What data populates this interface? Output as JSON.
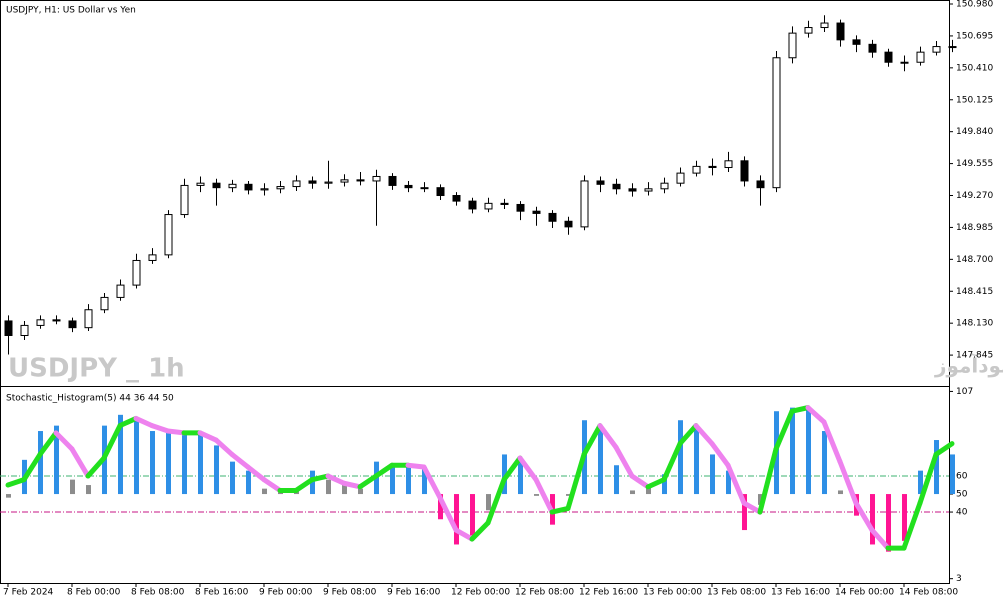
{
  "chart_data": [
    {
      "type": "candlestick",
      "title": "USDJPY, H1:  US Dollar vs Yen",
      "annotations": [
        "USDJPY _ 1h",
        "انتشار در سایت سودآموز"
      ],
      "up_color": "#ffffff",
      "down_color": "#000000",
      "line_color": "#000000",
      "ylim": [
        147.578,
        150.989
      ],
      "yticks": [
        {
          "value": 150.98,
          "label": "150.980"
        },
        {
          "value": 150.695,
          "label": "150.695"
        },
        {
          "value": 150.41,
          "label": "150.410"
        },
        {
          "value": 150.125,
          "label": "150.125"
        },
        {
          "value": 149.84,
          "label": "149.840"
        },
        {
          "value": 149.555,
          "label": "149.555"
        },
        {
          "value": 149.27,
          "label": "149.270"
        },
        {
          "value": 148.985,
          "label": "148.985"
        },
        {
          "value": 148.7,
          "label": "148.700"
        },
        {
          "value": 148.415,
          "label": "148.415"
        },
        {
          "value": 148.13,
          "label": "148.130"
        },
        {
          "value": 147.845,
          "label": "147.845"
        }
      ],
      "open": [
        148.15,
        148.02,
        148.11,
        148.16,
        148.15,
        148.09,
        148.25,
        148.36,
        148.47,
        148.69,
        148.74,
        149.1,
        149.36,
        149.38,
        149.34,
        149.37,
        149.32,
        149.33,
        149.35,
        149.4,
        149.38,
        149.39,
        149.41,
        149.4,
        149.44,
        149.36,
        149.34,
        149.34,
        149.27,
        149.22,
        149.15,
        149.2,
        149.19,
        149.13,
        149.11,
        149.04,
        148.99,
        149.4,
        149.37,
        149.33,
        149.31,
        149.33,
        149.38,
        149.47,
        149.53,
        149.52,
        149.58,
        149.4,
        149.34,
        150.5,
        150.72,
        150.77,
        150.81,
        150.66,
        150.62,
        150.55,
        150.46,
        150.46,
        150.55,
        150.6
      ],
      "high": [
        148.2,
        148.15,
        148.2,
        148.2,
        148.18,
        148.3,
        148.4,
        148.52,
        148.75,
        148.8,
        149.14,
        149.42,
        149.44,
        149.42,
        149.41,
        149.4,
        149.38,
        149.4,
        149.45,
        149.44,
        149.58,
        149.46,
        149.48,
        149.5,
        149.47,
        149.4,
        149.39,
        149.37,
        149.3,
        149.25,
        149.25,
        149.24,
        149.22,
        149.17,
        149.14,
        149.08,
        149.45,
        149.44,
        149.42,
        149.38,
        149.39,
        149.43,
        149.52,
        149.58,
        149.6,
        149.66,
        149.62,
        149.45,
        150.56,
        150.78,
        150.83,
        150.88,
        150.84,
        150.7,
        150.66,
        150.58,
        150.52,
        150.6,
        150.65,
        150.66
      ],
      "low": [
        147.85,
        147.98,
        148.08,
        148.12,
        148.05,
        148.06,
        148.22,
        148.33,
        148.44,
        148.66,
        148.71,
        149.07,
        149.3,
        149.18,
        149.3,
        149.28,
        149.27,
        149.29,
        149.31,
        149.33,
        149.33,
        149.35,
        149.36,
        149.0,
        149.32,
        149.3,
        149.3,
        149.23,
        149.18,
        149.11,
        149.12,
        149.15,
        149.05,
        149.0,
        148.98,
        148.92,
        148.96,
        149.3,
        149.28,
        149.26,
        149.27,
        149.29,
        149.35,
        149.44,
        149.45,
        149.48,
        149.35,
        149.18,
        149.3,
        150.45,
        150.68,
        150.73,
        150.6,
        150.55,
        150.5,
        150.42,
        150.38,
        150.43,
        150.52,
        150.55
      ],
      "close": [
        148.02,
        148.11,
        148.16,
        148.15,
        148.09,
        148.25,
        148.36,
        148.47,
        148.69,
        148.74,
        149.1,
        149.36,
        149.38,
        149.34,
        149.37,
        149.32,
        149.33,
        149.35,
        149.4,
        149.38,
        149.39,
        149.41,
        149.4,
        149.44,
        149.36,
        149.34,
        149.34,
        149.27,
        149.22,
        149.15,
        149.2,
        149.19,
        149.13,
        149.11,
        149.04,
        148.99,
        149.4,
        149.37,
        149.33,
        149.31,
        149.33,
        149.38,
        149.47,
        149.53,
        149.52,
        149.58,
        149.4,
        149.34,
        150.5,
        150.72,
        150.77,
        150.81,
        150.66,
        150.62,
        150.55,
        150.46,
        150.46,
        150.55,
        150.6,
        150.6
      ]
    },
    {
      "type": "histogram",
      "title": "Stochastic_Histogram(5) 44 36 44 50",
      "categories": [
        "7 Feb 2024",
        null,
        null,
        null,
        "8 Feb 00:00",
        null,
        null,
        null,
        "8 Feb 08:00",
        null,
        null,
        null,
        "8 Feb 16:00",
        null,
        null,
        null,
        "9 Feb 00:00",
        null,
        null,
        null,
        "9 Feb 08:00",
        null,
        null,
        null,
        "9 Feb 16:00",
        null,
        null,
        null,
        "12 Feb 00:00",
        null,
        null,
        null,
        "12 Feb 08:00",
        null,
        null,
        null,
        "12 Feb 16:00",
        null,
        null,
        null,
        "13 Feb 00:00",
        null,
        null,
        null,
        "13 Feb 08:00",
        null,
        null,
        null,
        "13 Feb 16:00",
        null,
        null,
        null,
        "14 Feb 00:00",
        null,
        null,
        null,
        "14 Feb 08:00",
        null,
        null,
        null
      ],
      "values": [
        48,
        69,
        85,
        88,
        58,
        55,
        88,
        94,
        91,
        85,
        84,
        84,
        84,
        77,
        68,
        63,
        53,
        51,
        53,
        63,
        58,
        55,
        53,
        68,
        66,
        65,
        65,
        36,
        22,
        27,
        41,
        72,
        69,
        49,
        33,
        49,
        91,
        88,
        66,
        52,
        55,
        61,
        91,
        88,
        72,
        63,
        30,
        44,
        96,
        98,
        97,
        85,
        52,
        38,
        22,
        18,
        24,
        63,
        80,
        72
      ],
      "signal": [
        55,
        58,
        72,
        84,
        75,
        60,
        70,
        88,
        92,
        88,
        85,
        84,
        84,
        80,
        72,
        65,
        58,
        52,
        52,
        58,
        60,
        56,
        54,
        60,
        66,
        66,
        65,
        48,
        30,
        25,
        34,
        58,
        70,
        58,
        40,
        42,
        72,
        88,
        76,
        60,
        54,
        58,
        78,
        88,
        78,
        66,
        45,
        40,
        75,
        96,
        98,
        90,
        68,
        45,
        30,
        20,
        20,
        45,
        72,
        78
      ],
      "baseline": 50,
      "levels": [
        60,
        40
      ],
      "colors": {
        "up": "#2e8fe6",
        "down": "#ff1493",
        "flat": "#8c8c8c",
        "signal_up": "#22e01e",
        "signal_down": "#ee82ee",
        "level_upper": "#3cb371",
        "level_lower": "#c71585"
      },
      "ylim": [
        0.6,
        108.9
      ],
      "yticks": [
        107,
        60,
        50,
        40,
        3
      ]
    }
  ]
}
